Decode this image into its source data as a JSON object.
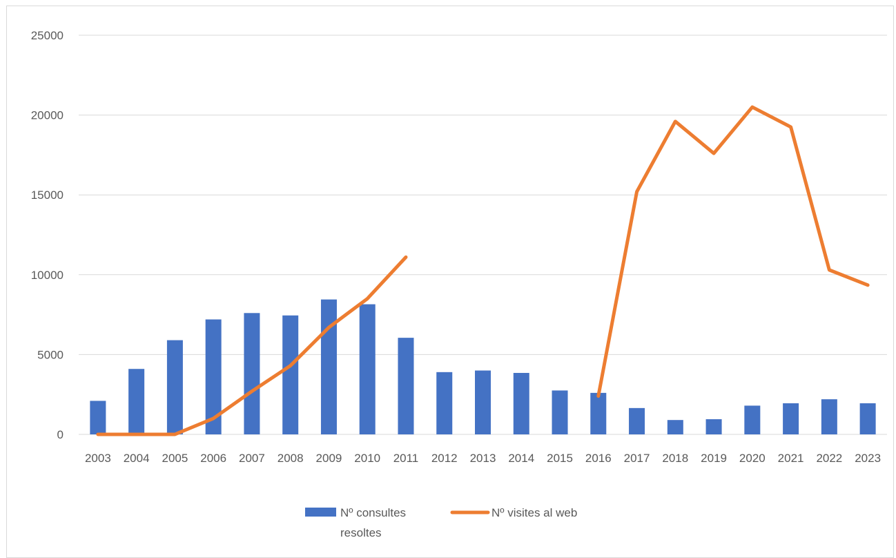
{
  "chart_data": {
    "type": "bar",
    "categories": [
      "2003",
      "2004",
      "2005",
      "2006",
      "2007",
      "2008",
      "2009",
      "2010",
      "2011",
      "2012",
      "2013",
      "2014",
      "2015",
      "2016",
      "2017",
      "2018",
      "2019",
      "2020",
      "2021",
      "2022",
      "2023"
    ],
    "ylim": [
      0,
      25000
    ],
    "yticks": [
      "0",
      "5000",
      "10000",
      "15000",
      "20000",
      "25000"
    ],
    "grid": true,
    "legend_position": "bottom",
    "series": [
      {
        "name": "Nº consultes resoltes",
        "type": "bar",
        "color": "#4472C4",
        "values": [
          2100,
          4100,
          5900,
          7200,
          7600,
          7450,
          8450,
          8150,
          6050,
          3900,
          4000,
          3850,
          2750,
          2600,
          1650,
          900,
          950,
          1800,
          1950,
          2200,
          1950
        ]
      },
      {
        "name": "Nº visites al web",
        "type": "line",
        "color": "#ED7D31",
        "values": [
          0,
          0,
          0,
          1000,
          2700,
          4300,
          6700,
          8500,
          11100,
          null,
          null,
          null,
          null,
          2400,
          15200,
          19600,
          17600,
          20500,
          19250,
          10300,
          9350
        ]
      }
    ]
  },
  "legend": {
    "bar_line1": "Nº consultes",
    "bar_line2": "resoltes",
    "line_label": "Nº visites al web"
  }
}
